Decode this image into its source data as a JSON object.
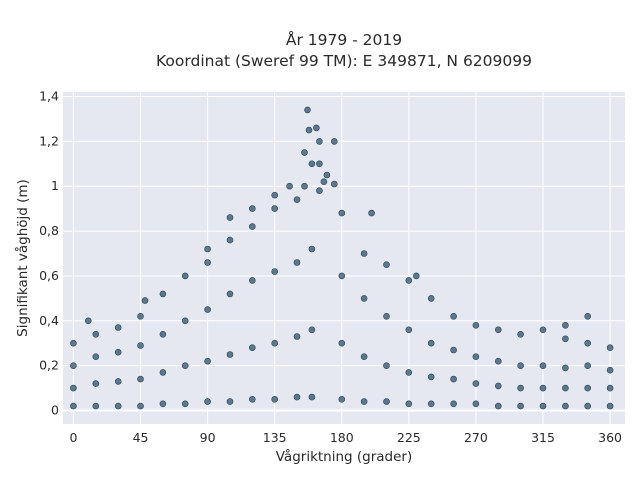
{
  "chart_data": {
    "type": "scatter",
    "title": "År 1979 - 2019",
    "subtitle": "Koordinat (Sweref 99 TM): E 349871, N 6209099",
    "xlabel": "Vågriktning (grader)",
    "ylabel": "Signifikant våghöjd (m)",
    "xlim": [
      -7,
      370
    ],
    "ylim": [
      -0.06,
      1.42
    ],
    "x_ticks": [
      0,
      45,
      90,
      135,
      180,
      225,
      270,
      315,
      360
    ],
    "x_tick_labels": [
      "0",
      "45",
      "90",
      "135",
      "180",
      "225",
      "270",
      "315",
      "360"
    ],
    "y_ticks": [
      0,
      0.2,
      0.4,
      0.6,
      0.8,
      1.0,
      1.2,
      1.4
    ],
    "y_tick_labels": [
      "0",
      "0,2",
      "0,4",
      "0,6",
      "0,8",
      "1",
      "1,2",
      "1,4"
    ],
    "grid": true,
    "legend": "none",
    "marker_color": "#2e5068",
    "plot_background": "#e5e8f0",
    "series": [
      {
        "x": [
          0,
          0,
          0,
          0,
          15,
          15,
          15,
          15,
          30,
          30,
          30,
          30,
          45,
          45,
          45,
          45,
          60,
          60,
          60,
          60,
          75,
          75,
          75,
          75,
          90,
          90,
          90,
          90,
          90,
          105,
          105,
          105,
          105,
          105,
          120,
          120,
          120,
          120,
          120,
          135,
          135,
          135,
          135,
          135,
          145,
          150,
          150,
          150,
          150,
          155,
          157,
          158,
          160,
          160,
          160,
          163,
          165,
          165,
          165,
          168,
          170,
          175,
          175,
          180,
          180,
          180,
          180,
          195,
          195,
          195,
          195,
          210,
          210,
          210,
          210,
          225,
          225,
          225,
          225,
          240,
          240,
          240,
          240,
          255,
          255,
          255,
          255,
          270,
          270,
          270,
          270,
          285,
          285,
          285,
          285,
          300,
          300,
          300,
          300,
          315,
          315,
          315,
          315,
          330,
          330,
          330,
          330,
          345,
          345,
          345,
          345,
          360,
          360,
          360,
          360,
          10,
          48,
          155,
          160,
          200,
          230,
          330,
          345
        ],
        "y": [
          0.02,
          0.1,
          0.2,
          0.3,
          0.02,
          0.12,
          0.24,
          0.34,
          0.02,
          0.13,
          0.26,
          0.37,
          0.02,
          0.14,
          0.29,
          0.42,
          0.03,
          0.17,
          0.34,
          0.52,
          0.03,
          0.2,
          0.4,
          0.6,
          0.04,
          0.22,
          0.45,
          0.66,
          0.72,
          0.04,
          0.25,
          0.52,
          0.76,
          0.86,
          0.05,
          0.28,
          0.58,
          0.82,
          0.9,
          0.05,
          0.3,
          0.62,
          0.9,
          0.96,
          1.0,
          0.06,
          0.33,
          0.66,
          0.94,
          1.15,
          1.34,
          1.25,
          0.06,
          0.36,
          0.72,
          1.26,
          0.98,
          1.1,
          1.2,
          1.02,
          1.05,
          1.2,
          1.01,
          0.05,
          0.3,
          0.6,
          0.88,
          0.04,
          0.24,
          0.5,
          0.7,
          0.04,
          0.2,
          0.42,
          0.65,
          0.03,
          0.17,
          0.36,
          0.58,
          0.03,
          0.15,
          0.3,
          0.5,
          0.03,
          0.14,
          0.27,
          0.42,
          0.03,
          0.12,
          0.24,
          0.38,
          0.02,
          0.11,
          0.22,
          0.36,
          0.02,
          0.1,
          0.2,
          0.34,
          0.02,
          0.1,
          0.2,
          0.36,
          0.02,
          0.1,
          0.19,
          0.32,
          0.02,
          0.1,
          0.2,
          0.3,
          0.02,
          0.1,
          0.18,
          0.28,
          0.4,
          0.49,
          1.0,
          1.1,
          0.88,
          0.6,
          0.38,
          0.42
        ]
      }
    ]
  }
}
